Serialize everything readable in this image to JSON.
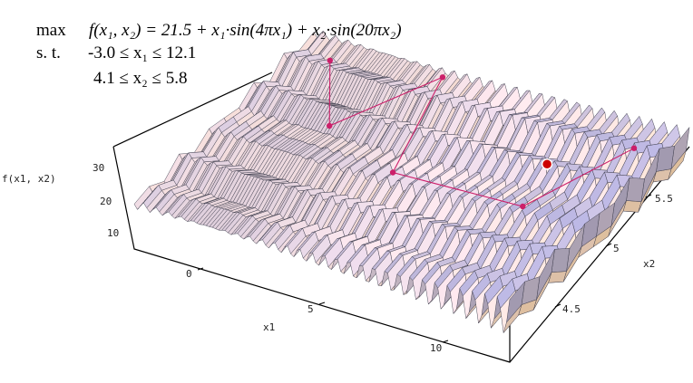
{
  "formula": {
    "max_keyword": "max",
    "objective": "f(x₁, x₂) = 21.5 + x₁·sin(4πx₁) + x₂·sin(20πx₂)",
    "st_keyword": "s. t.",
    "constraint_x1": "-3.0 ≤ x₁ ≤ 12.1",
    "constraint_x2": "4.1 ≤ x₂ ≤ 5.8"
  },
  "axes": {
    "z_label": "f(x1, x2)",
    "x_label": "x1",
    "y_label": "x2",
    "z_ticks": [
      "30",
      "20",
      "10"
    ],
    "x_ticks": [
      "0",
      "5",
      "10"
    ],
    "y_ticks": [
      "5.5",
      "5",
      "4.5"
    ]
  },
  "colors": {
    "path": "#cc1f6a",
    "best_marker": "#cc0000"
  }
}
